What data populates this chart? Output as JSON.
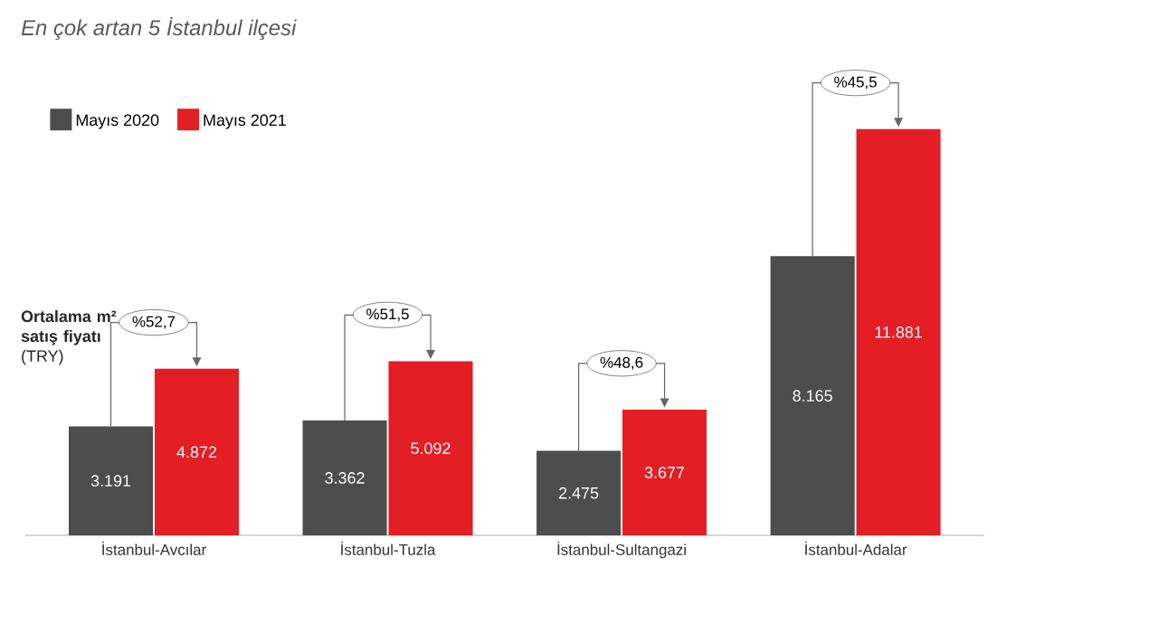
{
  "chart_data": {
    "type": "bar",
    "title": "En çok artan 5 İstanbul ilçesi",
    "ylabel": "**Ortalama m² satış fiyatı** (TRY)",
    "categories": [
      "İstanbul-Avcılar",
      "İstanbul-Tuzla",
      "İstanbul-Sultangazi",
      "İstanbul-Adalar"
    ],
    "series": [
      {
        "name": "Mayıs 2020",
        "color": "#4d4d4d",
        "values": [
          3191,
          3362,
          2475,
          8165
        ],
        "value_labels": [
          "3.191",
          "3.362",
          "2.475",
          "8.165"
        ]
      },
      {
        "name": "Mayıs 2021",
        "color": "#e31e24",
        "values": [
          4872,
          5092,
          3677,
          11881
        ],
        "value_labels": [
          "4.872",
          "5.092",
          "3.677",
          "11.881"
        ]
      }
    ],
    "annotations": [
      "%52,7",
      "%51,5",
      "%48,6",
      "%45,5"
    ],
    "legend": "top left"
  }
}
